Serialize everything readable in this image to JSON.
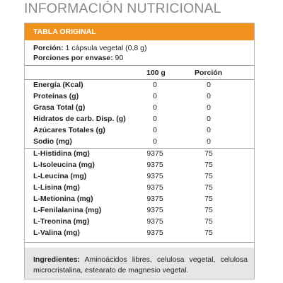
{
  "title": "INFORMACIÓN NUTRICIONAL",
  "table_heading": "TABLA ORIGINAL",
  "serving": {
    "portion_label": "Porción:",
    "portion_value": "1 cápsula vegetal (0,8 g)",
    "servings_label": "Porciones por envase:",
    "servings_value": "90"
  },
  "columns": {
    "per100": "100 g",
    "perPortion": "Porción"
  },
  "nutrients": [
    {
      "name": "Energía (Kcal)",
      "per100": "0",
      "perPortion": "0"
    },
    {
      "name": "Proteínas (g)",
      "per100": "0",
      "perPortion": "0"
    },
    {
      "name": "Grasa Total (g)",
      "per100": "0",
      "perPortion": "0"
    },
    {
      "name": "Hidratos de carb. Disp. (g)",
      "per100": "0",
      "perPortion": "0"
    },
    {
      "name": "Azúcares Totales (g)",
      "per100": "0",
      "perPortion": "0"
    },
    {
      "name": "Sodio (mg)",
      "per100": "0",
      "perPortion": "0"
    }
  ],
  "amino_acids": [
    {
      "name": "L-Histidina (mg)",
      "per100": "9375",
      "perPortion": "75"
    },
    {
      "name": "L-Isoleucina (mg)",
      "per100": "9375",
      "perPortion": "75"
    },
    {
      "name": "L-Leucina (mg)",
      "per100": "9375",
      "perPortion": "75"
    },
    {
      "name": "L-Lisina (mg)",
      "per100": "9375",
      "perPortion": "75"
    },
    {
      "name": "L-Metionina (mg)",
      "per100": "9375",
      "perPortion": "75"
    },
    {
      "name": "L-Fenilalanina (mg)",
      "per100": "9375",
      "perPortion": "75"
    },
    {
      "name": "L-Treonina (mg)",
      "per100": "9375",
      "perPortion": "75"
    },
    {
      "name": "L-Valina (mg)",
      "per100": "9375",
      "perPortion": "75"
    }
  ],
  "ingredients": {
    "label": "Ingredientes:",
    "text": "Aminoácidos libres, celulosa vegetal, celulosa microcristalina, estearato de magnesio vegetal."
  },
  "colors": {
    "accent": "#f0921d",
    "title": "#8a8a8a",
    "footer_bg": "#e6e6e6"
  }
}
